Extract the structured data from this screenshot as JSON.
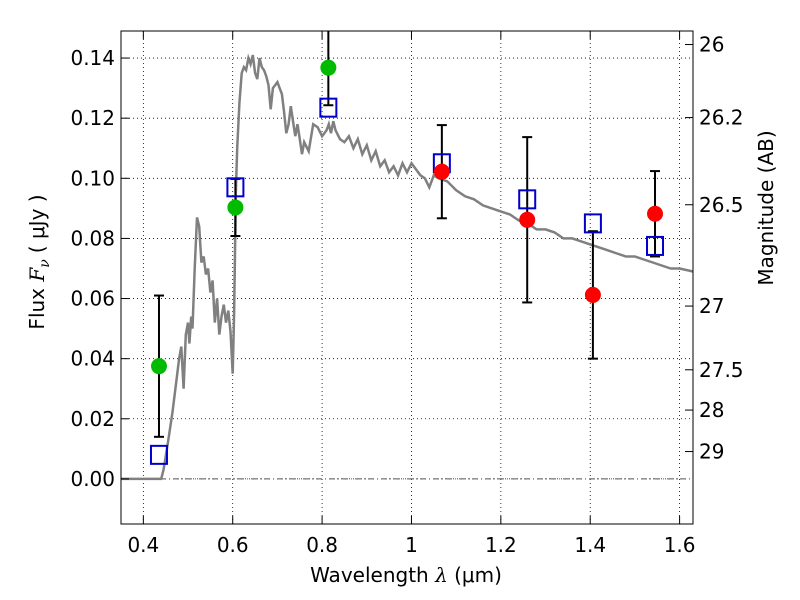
{
  "chart_data": {
    "type": "scatter",
    "xlabel": {
      "prefix": "Wavelength ",
      "symbol": "λ",
      "unit": " (μm)"
    },
    "ylabel": {
      "prefix": "Flux ",
      "symbol": "F",
      "subscript": "ν",
      "unit": "( μJy )"
    },
    "y2label": "Magnitude (AB)",
    "xlim": [
      0.35,
      1.63
    ],
    "ylim": [
      -0.015,
      0.149
    ],
    "grid": true,
    "x_ticks": [
      {
        "value": 0.4,
        "label": "0.4"
      },
      {
        "value": 0.6,
        "label": "0.6"
      },
      {
        "value": 0.8,
        "label": "0.8"
      },
      {
        "value": 1.0,
        "label": "1"
      },
      {
        "value": 1.2,
        "label": "1.2"
      },
      {
        "value": 1.4,
        "label": "1.4"
      },
      {
        "value": 1.6,
        "label": "1.6"
      }
    ],
    "y_ticks": [
      {
        "value": 0.0,
        "label": "0.00"
      },
      {
        "value": 0.02,
        "label": "0.02"
      },
      {
        "value": 0.04,
        "label": "0.04"
      },
      {
        "value": 0.06,
        "label": "0.06"
      },
      {
        "value": 0.08,
        "label": "0.08"
      },
      {
        "value": 0.1,
        "label": "0.10"
      },
      {
        "value": 0.12,
        "label": "0.12"
      },
      {
        "value": 0.14,
        "label": "0.14"
      }
    ],
    "y2_ticks": [
      {
        "flux": 0.1445,
        "label": "26"
      },
      {
        "flux": 0.1202,
        "label": "26.2"
      },
      {
        "flux": 0.0912,
        "label": "26.5"
      },
      {
        "flux": 0.0575,
        "label": "27"
      },
      {
        "flux": 0.0363,
        "label": "27.5"
      },
      {
        "flux": 0.0229,
        "label": "28"
      },
      {
        "flux": 0.0091,
        "label": "29"
      }
    ],
    "colors": {
      "model": "#808080",
      "observed_optical": "#00bb00",
      "observed_ir": "#ff0000",
      "model_flux": "#0000cc",
      "errorbar": "#000000",
      "zero_line": "#555555"
    },
    "model_sed": {
      "x": [
        0.35,
        0.43,
        0.44,
        0.445,
        0.455,
        0.465,
        0.475,
        0.48,
        0.485,
        0.49,
        0.495,
        0.5,
        0.503,
        0.507,
        0.51,
        0.515,
        0.52,
        0.525,
        0.53,
        0.535,
        0.54,
        0.545,
        0.55,
        0.555,
        0.56,
        0.565,
        0.57,
        0.575,
        0.58,
        0.585,
        0.59,
        0.595,
        0.6,
        0.603,
        0.605,
        0.607,
        0.61,
        0.615,
        0.62,
        0.625,
        0.63,
        0.635,
        0.64,
        0.645,
        0.65,
        0.655,
        0.66,
        0.665,
        0.67,
        0.675,
        0.68,
        0.685,
        0.69,
        0.695,
        0.7,
        0.705,
        0.71,
        0.715,
        0.72,
        0.725,
        0.73,
        0.735,
        0.74,
        0.745,
        0.75,
        0.755,
        0.76,
        0.77,
        0.78,
        0.79,
        0.8,
        0.81,
        0.815,
        0.82,
        0.825,
        0.83,
        0.84,
        0.85,
        0.86,
        0.87,
        0.88,
        0.89,
        0.9,
        0.91,
        0.92,
        0.93,
        0.94,
        0.95,
        0.96,
        0.97,
        0.98,
        0.99,
        1.0,
        1.01,
        1.02,
        1.03,
        1.04,
        1.05,
        1.06,
        1.08,
        1.1,
        1.12,
        1.14,
        1.16,
        1.18,
        1.2,
        1.22,
        1.24,
        1.26,
        1.28,
        1.3,
        1.32,
        1.34,
        1.36,
        1.38,
        1.4,
        1.42,
        1.44,
        1.46,
        1.48,
        1.5,
        1.52,
        1.54,
        1.56,
        1.58,
        1.6,
        1.63
      ],
      "y": [
        0.0,
        0.0,
        0.0,
        0.003,
        0.012,
        0.022,
        0.034,
        0.04,
        0.044,
        0.03,
        0.048,
        0.052,
        0.045,
        0.054,
        0.05,
        0.07,
        0.087,
        0.084,
        0.072,
        0.074,
        0.068,
        0.07,
        0.062,
        0.066,
        0.052,
        0.06,
        0.048,
        0.054,
        0.058,
        0.052,
        0.056,
        0.049,
        0.035,
        0.055,
        0.075,
        0.095,
        0.11,
        0.125,
        0.135,
        0.137,
        0.136,
        0.14,
        0.138,
        0.141,
        0.135,
        0.133,
        0.14,
        0.137,
        0.136,
        0.134,
        0.131,
        0.123,
        0.13,
        0.131,
        0.132,
        0.13,
        0.128,
        0.122,
        0.115,
        0.118,
        0.124,
        0.119,
        0.114,
        0.118,
        0.113,
        0.108,
        0.112,
        0.109,
        0.118,
        0.117,
        0.114,
        0.116,
        0.118,
        0.115,
        0.119,
        0.116,
        0.113,
        0.112,
        0.114,
        0.11,
        0.113,
        0.108,
        0.111,
        0.106,
        0.109,
        0.104,
        0.106,
        0.102,
        0.104,
        0.101,
        0.105,
        0.102,
        0.105,
        0.103,
        0.101,
        0.1,
        0.097,
        0.101,
        0.1,
        0.099,
        0.096,
        0.094,
        0.093,
        0.091,
        0.09,
        0.089,
        0.088,
        0.086,
        0.085,
        0.083,
        0.083,
        0.082,
        0.08,
        0.08,
        0.079,
        0.078,
        0.077,
        0.076,
        0.075,
        0.074,
        0.074,
        0.073,
        0.072,
        0.071,
        0.07,
        0.07,
        0.069
      ]
    },
    "observed": [
      {
        "x": 0.435,
        "y": 0.0375,
        "yerr": 0.0235,
        "band": "optical"
      },
      {
        "x": 0.606,
        "y": 0.0903,
        "yerr": 0.0095,
        "band": "optical"
      },
      {
        "x": 0.814,
        "y": 0.1368,
        "yerr": 0.0125,
        "band": "optical"
      },
      {
        "x": 1.068,
        "y": 0.1022,
        "yerr": 0.0155,
        "band": "ir"
      },
      {
        "x": 1.259,
        "y": 0.0862,
        "yerr": 0.0275,
        "band": "ir"
      },
      {
        "x": 1.406,
        "y": 0.0612,
        "yerr": 0.0212,
        "band": "ir"
      },
      {
        "x": 1.545,
        "y": 0.0882,
        "yerr": 0.0142,
        "band": "ir"
      }
    ],
    "model_flux": [
      {
        "x": 0.435,
        "y": 0.008
      },
      {
        "x": 0.606,
        "y": 0.097
      },
      {
        "x": 0.814,
        "y": 0.1235
      },
      {
        "x": 1.068,
        "y": 0.105
      },
      {
        "x": 1.259,
        "y": 0.093
      },
      {
        "x": 1.406,
        "y": 0.085
      },
      {
        "x": 1.545,
        "y": 0.0775
      }
    ]
  }
}
